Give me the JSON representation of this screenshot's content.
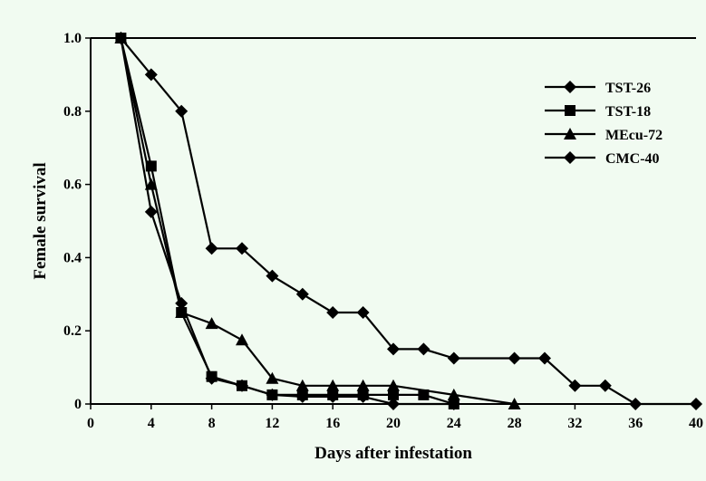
{
  "chart_data": {
    "type": "line",
    "title": "",
    "xlabel": "Days after infestation",
    "ylabel": "Female survival",
    "xlim": [
      0,
      40
    ],
    "ylim": [
      0,
      1.0
    ],
    "x_ticks": [
      0,
      4,
      8,
      12,
      16,
      20,
      24,
      28,
      32,
      36,
      40
    ],
    "y_ticks": [
      0,
      0.2,
      0.4,
      0.6,
      0.8,
      1.0
    ],
    "y_tick_labels": [
      "0",
      "0.2",
      "0.4",
      "0.6",
      "0.8",
      "1.0"
    ],
    "grid": false,
    "legend_position": "top-right",
    "series": [
      {
        "name": "TST-26",
        "marker": "diamond",
        "x": [
          2,
          4,
          6,
          8,
          10,
          12,
          14,
          16,
          18,
          20,
          22,
          24,
          28,
          30,
          32,
          34,
          36,
          40
        ],
        "y": [
          1.0,
          0.9,
          0.8,
          0.425,
          0.425,
          0.35,
          0.3,
          0.25,
          0.25,
          0.15,
          0.15,
          0.125,
          0.125,
          0.125,
          0.05,
          0.05,
          0,
          0
        ]
      },
      {
        "name": "TST-18",
        "marker": "square",
        "x": [
          2,
          4,
          6,
          8,
          10,
          12,
          14,
          16,
          18,
          20,
          22,
          24
        ],
        "y": [
          1.0,
          0.65,
          0.25,
          0.075,
          0.05,
          0.025,
          0.025,
          0.025,
          0.025,
          0.025,
          0.025,
          0
        ]
      },
      {
        "name": "MEcu-72",
        "marker": "triangle",
        "x": [
          2,
          4,
          6,
          8,
          10,
          12,
          14,
          16,
          18,
          20,
          24,
          28
        ],
        "y": [
          1.0,
          0.6,
          0.25,
          0.22,
          0.175,
          0.07,
          0.05,
          0.05,
          0.05,
          0.05,
          0.025,
          0
        ]
      },
      {
        "name": "CMC-40",
        "marker": "diamond",
        "x": [
          2,
          4,
          6,
          8,
          10,
          12,
          14,
          16,
          18,
          20,
          24
        ],
        "y": [
          1.0,
          0.525,
          0.275,
          0.07,
          0.05,
          0.025,
          0.02,
          0.02,
          0.02,
          0,
          0
        ]
      }
    ]
  }
}
